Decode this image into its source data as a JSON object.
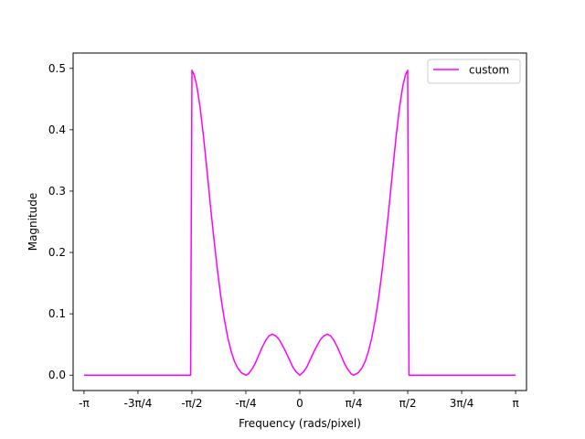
{
  "chart_data": {
    "type": "line",
    "xlabel": "Frequency (rads/pixel)",
    "ylabel": "Magnitude",
    "xlim": [
      -3.3,
      3.3
    ],
    "ylim": [
      -0.025,
      0.525
    ],
    "x_ticks": [
      {
        "value": -3.14159,
        "label": "-π"
      },
      {
        "value": -2.35619,
        "label": "-3π/4"
      },
      {
        "value": -1.5708,
        "label": "-π/2"
      },
      {
        "value": -0.7854,
        "label": "-π/4"
      },
      {
        "value": 0,
        "label": "0"
      },
      {
        "value": 0.7854,
        "label": "π/4"
      },
      {
        "value": 1.5708,
        "label": "π/2"
      },
      {
        "value": 2.35619,
        "label": "3π/4"
      },
      {
        "value": 3.14159,
        "label": "π"
      }
    ],
    "y_ticks": [
      {
        "value": 0.0,
        "label": "0.0"
      },
      {
        "value": 0.1,
        "label": "0.1"
      },
      {
        "value": 0.2,
        "label": "0.2"
      },
      {
        "value": 0.3,
        "label": "0.3"
      },
      {
        "value": 0.4,
        "label": "0.4"
      },
      {
        "value": 0.5,
        "label": "0.5"
      }
    ],
    "grid": false,
    "legend_position": "top-right",
    "series": [
      {
        "name": "custom",
        "color": "#ff00ff",
        "x": [
          -3.1416,
          -2.0,
          -1.59,
          -1.57,
          -1.54,
          -1.5,
          -1.45,
          -1.4,
          -1.35,
          -1.3,
          -1.25,
          -1.2,
          -1.15,
          -1.1,
          -1.05,
          -1.0,
          -0.95,
          -0.9,
          -0.85,
          -0.8,
          -0.785,
          -0.75,
          -0.7,
          -0.65,
          -0.6,
          -0.55,
          -0.5,
          -0.45,
          -0.4,
          -0.35,
          -0.3,
          -0.25,
          -0.2,
          -0.15,
          -0.1,
          -0.05,
          0.0,
          0.05,
          0.1,
          0.15,
          0.2,
          0.25,
          0.3,
          0.35,
          0.4,
          0.45,
          0.5,
          0.55,
          0.6,
          0.65,
          0.7,
          0.75,
          0.785,
          0.8,
          0.85,
          0.9,
          0.95,
          1.0,
          1.05,
          1.1,
          1.15,
          1.2,
          1.25,
          1.3,
          1.35,
          1.4,
          1.45,
          1.5,
          1.54,
          1.57,
          1.59,
          2.0,
          3.1416
        ],
        "y": [
          0.0,
          0.0,
          0.0,
          0.497,
          0.49,
          0.472,
          0.435,
          0.387,
          0.332,
          0.275,
          0.222,
          0.172,
          0.128,
          0.092,
          0.062,
          0.039,
          0.022,
          0.011,
          0.004,
          0.001,
          0.0,
          0.002,
          0.009,
          0.019,
          0.032,
          0.045,
          0.056,
          0.064,
          0.067,
          0.064,
          0.058,
          0.048,
          0.037,
          0.025,
          0.013,
          0.005,
          0.0,
          0.005,
          0.013,
          0.025,
          0.037,
          0.048,
          0.058,
          0.064,
          0.067,
          0.064,
          0.056,
          0.045,
          0.032,
          0.019,
          0.009,
          0.002,
          0.0,
          0.001,
          0.004,
          0.011,
          0.022,
          0.039,
          0.062,
          0.092,
          0.128,
          0.172,
          0.222,
          0.275,
          0.332,
          0.387,
          0.435,
          0.472,
          0.49,
          0.497,
          0.0,
          0.0,
          0.0
        ]
      }
    ]
  }
}
